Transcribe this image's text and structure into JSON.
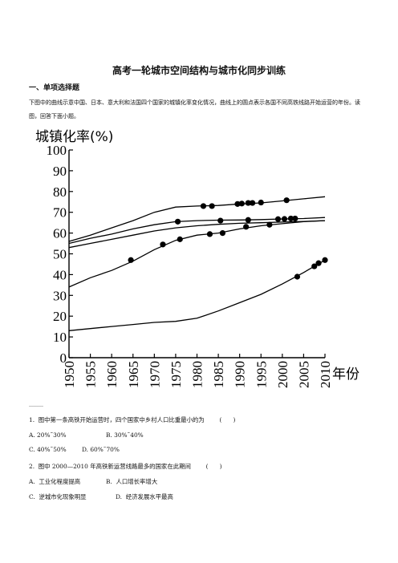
{
  "doc": {
    "title": "高考一轮城市空间结构与城市化同步训练",
    "section": "一、单项选择题",
    "intro": "下图中的曲线示意中国、日本、意大利和法国四个国家的城镇化率变化情况，曲线上的圆点表示各国不同高铁线路开始运营的年份。读图，回答下面小题。",
    "separator": "………",
    "q1": "1.  图中第一条高铁开始运营时，四个国家中乡村人口比重最小的为        (      )",
    "q1_a": "A. 20%˜30%",
    "q1_b": "B. 30%˜40%",
    "q1_c": "C. 40%˜50%",
    "q1_d": "D. 60%˜70%",
    "q2": "2.  图中 2000—2010 年高铁新运营线路最多的国家在此期间        (      )",
    "q2_a": "A.  工业化程度提高",
    "q2_b": "B.  人口增长率增大",
    "q2_c": "C.  逆城市化现象明显",
    "q2_d": "D.  经济发展水平最高"
  },
  "chart_data": {
    "type": "line",
    "ylabel": "城镇化率(%)",
    "xlabel": "年份",
    "xlim": [
      1950,
      2010
    ],
    "ylim": [
      0,
      100
    ],
    "xticks": [
      "1950",
      "1955",
      "1960",
      "1965",
      "1970",
      "1975",
      "1980",
      "1985",
      "1990",
      "1995",
      "2000",
      "2005",
      "2010"
    ],
    "yticks": [
      "0",
      "10",
      "20",
      "30",
      "40",
      "50",
      "60",
      "70",
      "80",
      "90",
      "100"
    ],
    "grid": false,
    "series": [
      {
        "points": [
          [
            1950,
            56
          ],
          [
            1955,
            59
          ],
          [
            1960,
            62.5
          ],
          [
            1965,
            66
          ],
          [
            1970,
            70
          ],
          [
            1975,
            72.5
          ],
          [
            1980,
            73
          ],
          [
            1985,
            73.3
          ],
          [
            1990,
            74
          ],
          [
            1995,
            74.5
          ],
          [
            2000,
            75.5
          ],
          [
            2005,
            76.5
          ],
          [
            2010,
            77.5
          ]
        ],
        "markers": [
          [
            1981.5,
            73
          ],
          [
            1983.5,
            73
          ],
          [
            1989.5,
            74
          ],
          [
            1990.5,
            74.2
          ],
          [
            1992,
            74.5
          ],
          [
            1993,
            74.5
          ],
          [
            1995,
            74.7
          ],
          [
            2001,
            75.8
          ]
        ]
      },
      {
        "points": [
          [
            1950,
            55
          ],
          [
            1955,
            57.5
          ],
          [
            1960,
            59.5
          ],
          [
            1965,
            62
          ],
          [
            1970,
            64
          ],
          [
            1975,
            65.5
          ],
          [
            1980,
            66
          ],
          [
            1985,
            66.2
          ],
          [
            1990,
            66.3
          ],
          [
            1995,
            66.5
          ],
          [
            2000,
            66.8
          ],
          [
            2005,
            67
          ],
          [
            2010,
            67.5
          ]
        ],
        "markers": [
          [
            1975.5,
            65.5
          ],
          [
            1985.5,
            66
          ],
          [
            1992,
            66.3
          ],
          [
            1999,
            66.7
          ],
          [
            2000.5,
            66.8
          ],
          [
            2002,
            67
          ],
          [
            2003,
            67
          ]
        ]
      },
      {
        "points": [
          [
            1950,
            53
          ],
          [
            1955,
            55
          ],
          [
            1960,
            57
          ],
          [
            1965,
            59
          ],
          [
            1970,
            61
          ],
          [
            1975,
            62.5
          ],
          [
            1980,
            63.5
          ],
          [
            1985,
            64.2
          ],
          [
            1990,
            64.7
          ],
          [
            1995,
            65
          ],
          [
            2000,
            65.3
          ],
          [
            2005,
            65.6
          ],
          [
            2010,
            66
          ]
        ],
        "markers": []
      },
      {
        "points": [
          [
            1950,
            34
          ],
          [
            1955,
            38.5
          ],
          [
            1960,
            42
          ],
          [
            1965,
            46.5
          ],
          [
            1970,
            52
          ],
          [
            1975,
            56.5
          ],
          [
            1980,
            59
          ],
          [
            1985,
            60
          ],
          [
            1990,
            62
          ],
          [
            1995,
            63.5
          ],
          [
            2000,
            64.5
          ],
          [
            2005,
            65.5
          ],
          [
            2010,
            66
          ]
        ],
        "markers": [
          [
            1964.5,
            47
          ],
          [
            1972,
            54.5
          ],
          [
            1976,
            57
          ],
          [
            1983,
            59.5
          ],
          [
            1986,
            60
          ],
          [
            1991.5,
            63
          ],
          [
            1997,
            64
          ]
        ]
      },
      {
        "points": [
          [
            1950,
            13
          ],
          [
            1955,
            14
          ],
          [
            1960,
            15
          ],
          [
            1965,
            16
          ],
          [
            1970,
            17
          ],
          [
            1975,
            17.5
          ],
          [
            1980,
            19
          ],
          [
            1985,
            22.5
          ],
          [
            1990,
            26.5
          ],
          [
            1995,
            30.5
          ],
          [
            2000,
            35.5
          ],
          [
            2005,
            41
          ],
          [
            2010,
            47
          ]
        ],
        "markers": [
          [
            2003.5,
            39
          ],
          [
            2007.5,
            44
          ],
          [
            2008.5,
            45.5
          ],
          [
            2010,
            47
          ]
        ]
      }
    ]
  }
}
